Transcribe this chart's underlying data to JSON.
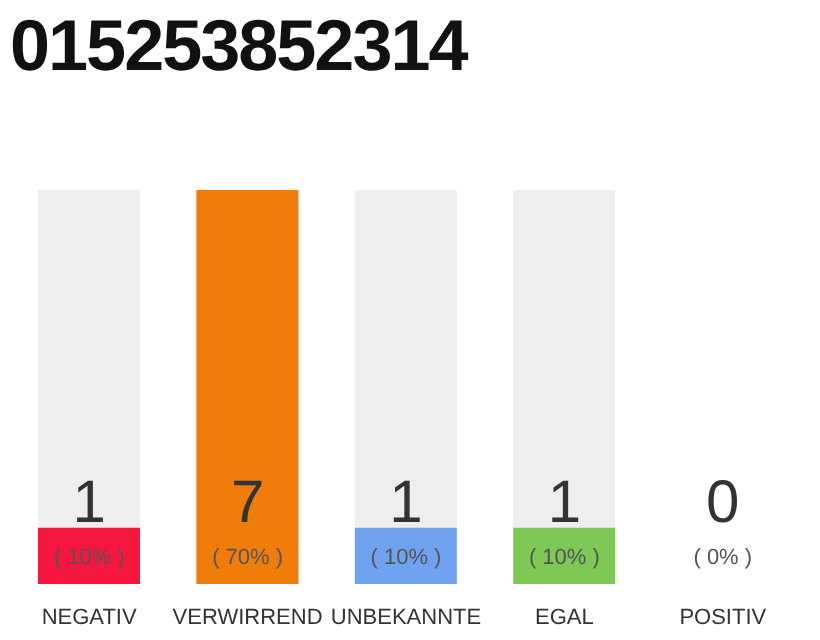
{
  "chart_data": {
    "type": "bar",
    "title": "015253852314",
    "categories": [
      "NEGATIV",
      "VERWIRREND",
      "UNBEKANNTE",
      "EGAL",
      "POSITIV"
    ],
    "values": [
      10,
      70,
      10,
      10,
      0
    ],
    "colors": [
      "#f5173d",
      "#f07c0a",
      "#6fa3ef",
      "#7ec855",
      null
    ],
    "value_labels": [
      "( 10% )",
      "( 70% )",
      "( 10% )",
      "( 10% )",
      "( 0% )"
    ],
    "annotations": [
      "1",
      "7",
      "1",
      "1",
      "0"
    ]
  }
}
